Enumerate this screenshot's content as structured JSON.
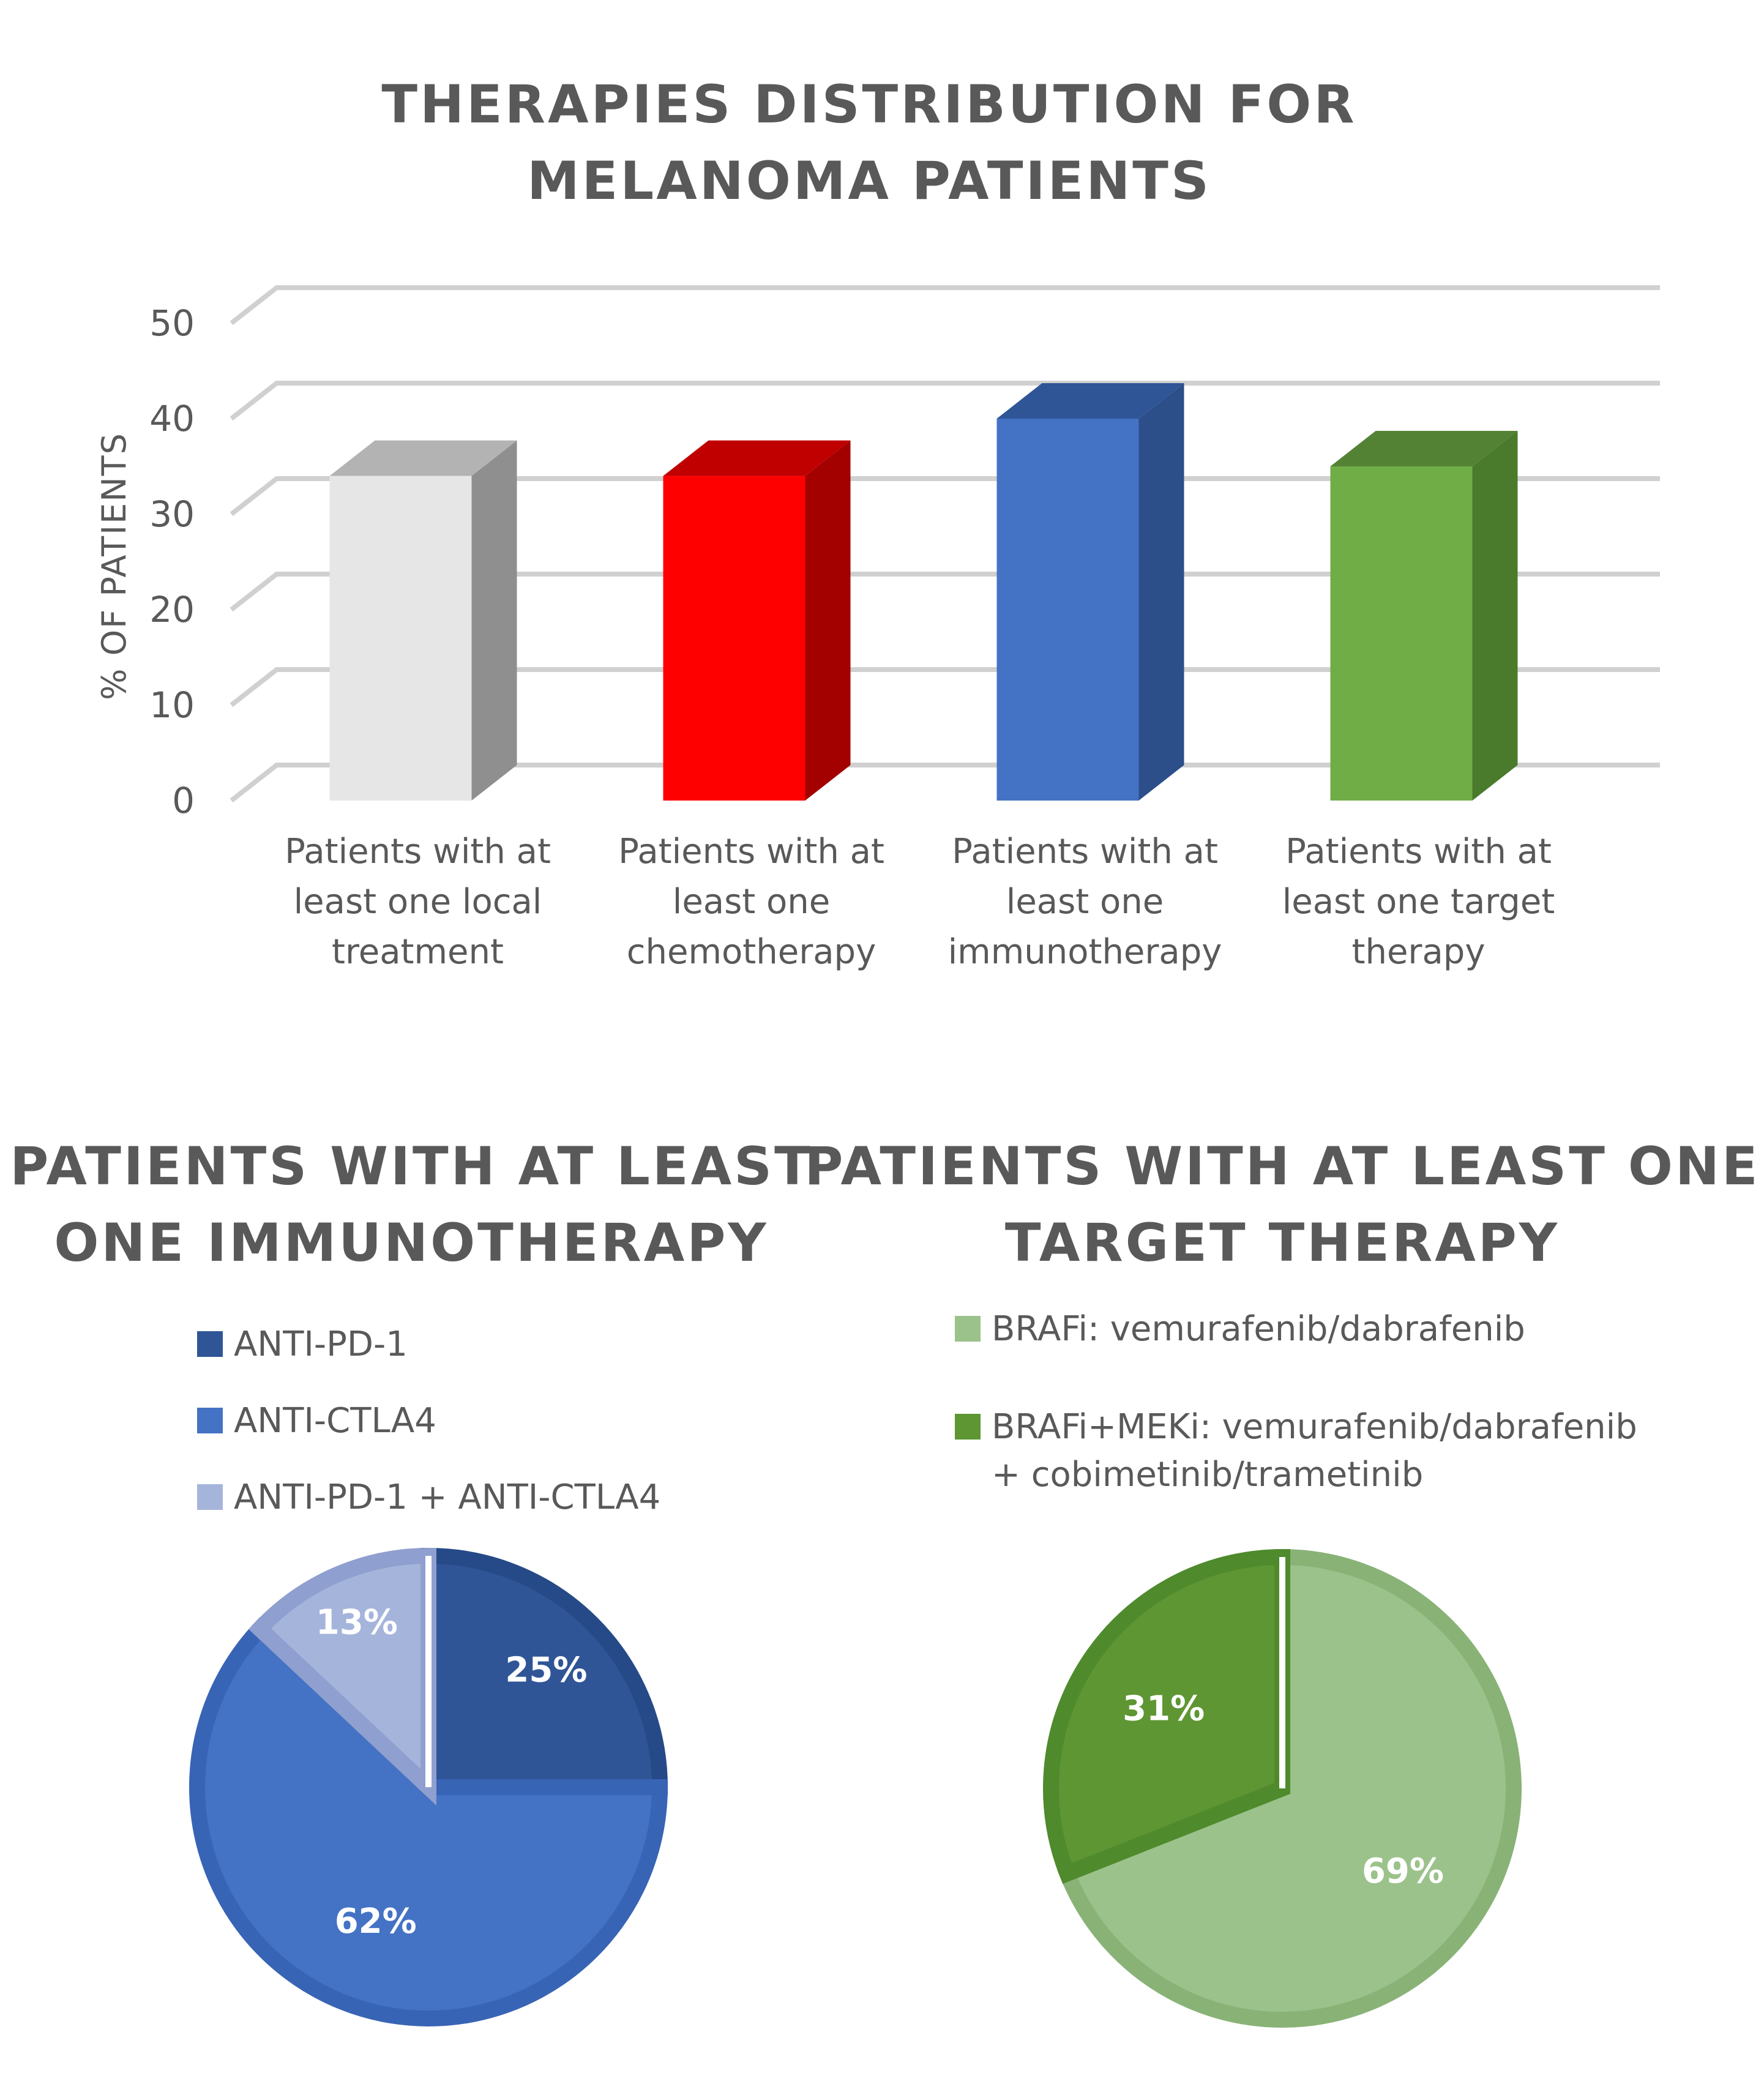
{
  "chart_data": [
    {
      "type": "bar",
      "title_lines": [
        "THERAPIES DISTRIBUTION FOR",
        "MELANOMA PATIENTS"
      ],
      "ylabel": "% OF PATIENTS",
      "ylim": [
        0,
        50
      ],
      "yticks": [
        "0",
        "10",
        "20",
        "30",
        "40",
        "50"
      ],
      "grid": true,
      "categories": [
        [
          "Patients with at",
          "least one local",
          "treatment"
        ],
        [
          "Patients with at",
          "least one",
          "chemotherapy"
        ],
        [
          "Patients with at",
          "least one",
          "immunotherapy"
        ],
        [
          "Patients with at",
          "least one target",
          "therapy"
        ]
      ],
      "values": [
        34,
        34,
        40,
        35
      ],
      "colors": [
        {
          "front": "#e6e6e6",
          "side": "#8f8f8f",
          "top": "#b3b3b3"
        },
        {
          "front": "#ff0000",
          "side": "#a30000",
          "top": "#c00000"
        },
        {
          "front": "#4472c4",
          "side": "#2c4f8a",
          "top": "#2f5597"
        },
        {
          "front": "#70ad47",
          "side": "#4a7a2c",
          "top": "#548235"
        }
      ]
    },
    {
      "type": "pie",
      "title_lines": [
        "PATIENTS WITH AT LEAST",
        "ONE IMMUNOTHERAPY"
      ],
      "legend": [
        "ANTI-PD-1",
        "ANTI-CTLA4",
        "ANTI-PD-1 + ANTI-CTLA4"
      ],
      "legend_placement": "top",
      "values": [
        25,
        62,
        13
      ],
      "labels": [
        "25%",
        "62%",
        "13%"
      ],
      "colors": [
        "#2f5597",
        "#4472c4",
        "#a5b4db"
      ],
      "border_colors": [
        "#264a87",
        "#3864b5",
        "#8f9fcf"
      ]
    },
    {
      "type": "pie",
      "title_lines": [
        "PATIENTS WITH AT LEAST ONE",
        "TARGET THERAPY"
      ],
      "legend": [
        [
          "BRAFi: vemurafenib/dabrafenib"
        ],
        [
          "BRAFi+MEKi: vemurafenib/dabrafenib",
          "+ cobimetinib/trametinib"
        ]
      ],
      "legend_placement": "top",
      "values": [
        69,
        31
      ],
      "labels": [
        "69%",
        "31%"
      ],
      "colors": [
        "#9bc28a",
        "#5e9633"
      ],
      "border_colors": [
        "#89b277",
        "#4f8a2d"
      ]
    }
  ]
}
